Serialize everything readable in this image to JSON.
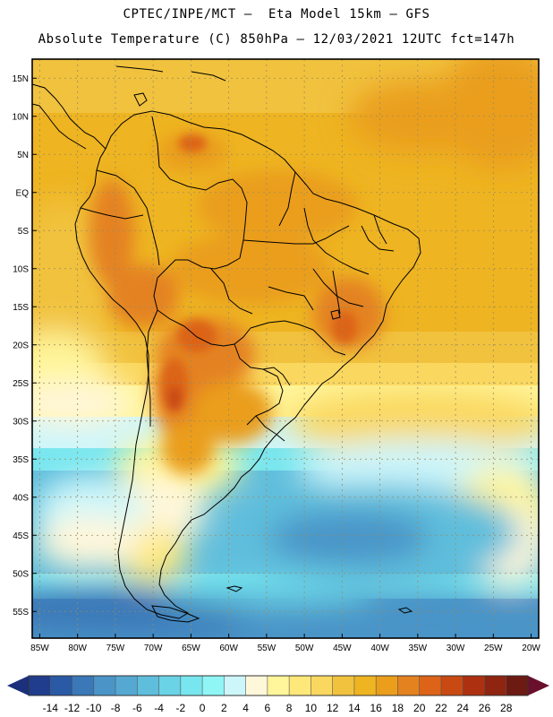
{
  "header": {
    "line1": "CPTEC/INPE/MCT –  Eta Model 15km – GFS",
    "line2": "Absolute Temperature (C) 850hPa – 12/03/2021 12UTC fct=147h"
  },
  "map": {
    "lat_labels": [
      "15N",
      "10N",
      "5N",
      "EQ",
      "5S",
      "10S",
      "15S",
      "20S",
      "25S",
      "30S",
      "35S",
      "40S",
      "45S",
      "50S",
      "55S"
    ],
    "lat_values": [
      15,
      10,
      5,
      0,
      -5,
      -10,
      -15,
      -20,
      -25,
      -30,
      -35,
      -40,
      -45,
      -50,
      -55
    ],
    "lon_labels": [
      "85W",
      "80W",
      "75W",
      "70W",
      "65W",
      "60W",
      "55W",
      "50W",
      "45W",
      "40W",
      "35W",
      "30W",
      "25W",
      "20W"
    ],
    "lon_values": [
      -85,
      -80,
      -75,
      -70,
      -65,
      -60,
      -55,
      -50,
      -45,
      -40,
      -35,
      -30,
      -25,
      -20
    ],
    "lon_range": [
      -86,
      -19
    ],
    "lat_range": [
      -58.5,
      17.5
    ],
    "field": "850hPa absolute temperature"
  },
  "colorbar": {
    "labels": [
      "-14",
      "-12",
      "-10",
      "-8",
      "-6",
      "-4",
      "-2",
      "0",
      "2",
      "4",
      "6",
      "8",
      "10",
      "12",
      "14",
      "16",
      "18",
      "20",
      "22",
      "24",
      "26",
      "28"
    ],
    "colors": [
      "#1f3d8c",
      "#2a5aa6",
      "#3a78b8",
      "#4a94c8",
      "#55a8d2",
      "#5fbedc",
      "#6ad3e6",
      "#78e6ef",
      "#8ff5f5",
      "#cdf6fb",
      "#fff7da",
      "#fff59a",
      "#ffe87a",
      "#fad860",
      "#f1c23e",
      "#eeb421",
      "#ea9e1b",
      "#e48220",
      "#dc6318",
      "#c84a12",
      "#ad3110",
      "#8f2410",
      "#6d1a12"
    ]
  }
}
